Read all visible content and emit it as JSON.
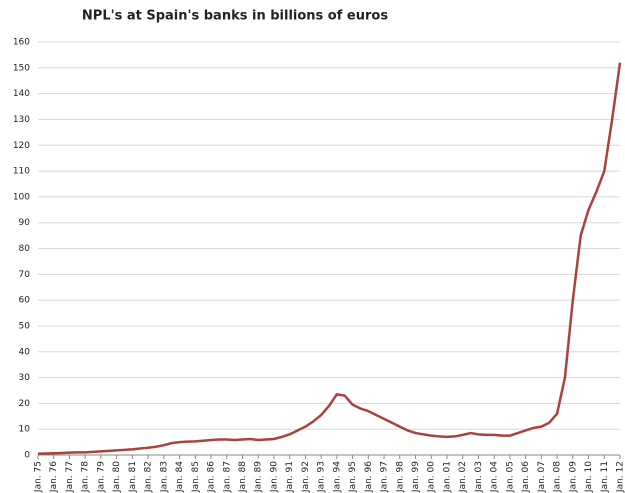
{
  "chart_data": {
    "type": "line",
    "title": "NPL's at Spain's banks in billions of euros",
    "categories": [
      "Jan. 75",
      null,
      "Jan. 76",
      null,
      "Jan. 77",
      null,
      "Jan. 78",
      null,
      "Jan. 79",
      null,
      "Jan. 80",
      null,
      "Jan. 81",
      null,
      "Jan. 82",
      null,
      "Jan. 83",
      null,
      "Jan. 84",
      null,
      "Jan. 85",
      null,
      "Jan. 86",
      null,
      "Jan. 87",
      null,
      "Jan. 88",
      null,
      "Jan. 89",
      null,
      "Jan. 90",
      null,
      "Jan. 91",
      null,
      "Jan. 92",
      null,
      "Jan. 93",
      null,
      "Jan. 94",
      null,
      "Jan. 95",
      null,
      "Jan. 96",
      null,
      "Jan. 97",
      null,
      "Jan. 98",
      null,
      "Jan. 99",
      null,
      "Jan. 00",
      null,
      "Jan. 01",
      null,
      "Jan. 02",
      null,
      "Jan. 03",
      null,
      "Jan. 04",
      null,
      "Jan. 05",
      null,
      "Jan. 06",
      null,
      "Jan. 07",
      null,
      "Jan. 08",
      null,
      "Jan. 09",
      null,
      "Jan. 10",
      null,
      "Jan. 11",
      null,
      "Jan. 12"
    ],
    "values": [
      0.5,
      0.6,
      0.7,
      0.8,
      0.9,
      1.0,
      1.0,
      1.2,
      1.4,
      1.6,
      1.8,
      2.0,
      2.2,
      2.5,
      2.8,
      3.2,
      3.8,
      4.6,
      5.0,
      5.2,
      5.3,
      5.5,
      5.8,
      6.0,
      6.0,
      5.8,
      6.0,
      6.2,
      5.8,
      6.0,
      6.2,
      7.0,
      8.0,
      9.5,
      11.0,
      13.0,
      15.5,
      19.0,
      23.5,
      23.0,
      19.5,
      18.0,
      17.0,
      15.5,
      14.0,
      12.5,
      11.0,
      9.5,
      8.5,
      8.0,
      7.5,
      7.2,
      7.0,
      7.2,
      7.8,
      8.5,
      8.0,
      7.8,
      7.8,
      7.5,
      7.5,
      8.5,
      9.5,
      10.5,
      11.0,
      12.5,
      16.0,
      30.0,
      60.0,
      85.0,
      95.0,
      102.0,
      110.0,
      130.0,
      152.0
    ],
    "color": "#a8433d",
    "ylim": [
      0,
      160
    ],
    "yticks": [
      0,
      10,
      20,
      30,
      40,
      50,
      60,
      70,
      80,
      90,
      100,
      110,
      120,
      130,
      140,
      150,
      160
    ],
    "grid": true
  }
}
